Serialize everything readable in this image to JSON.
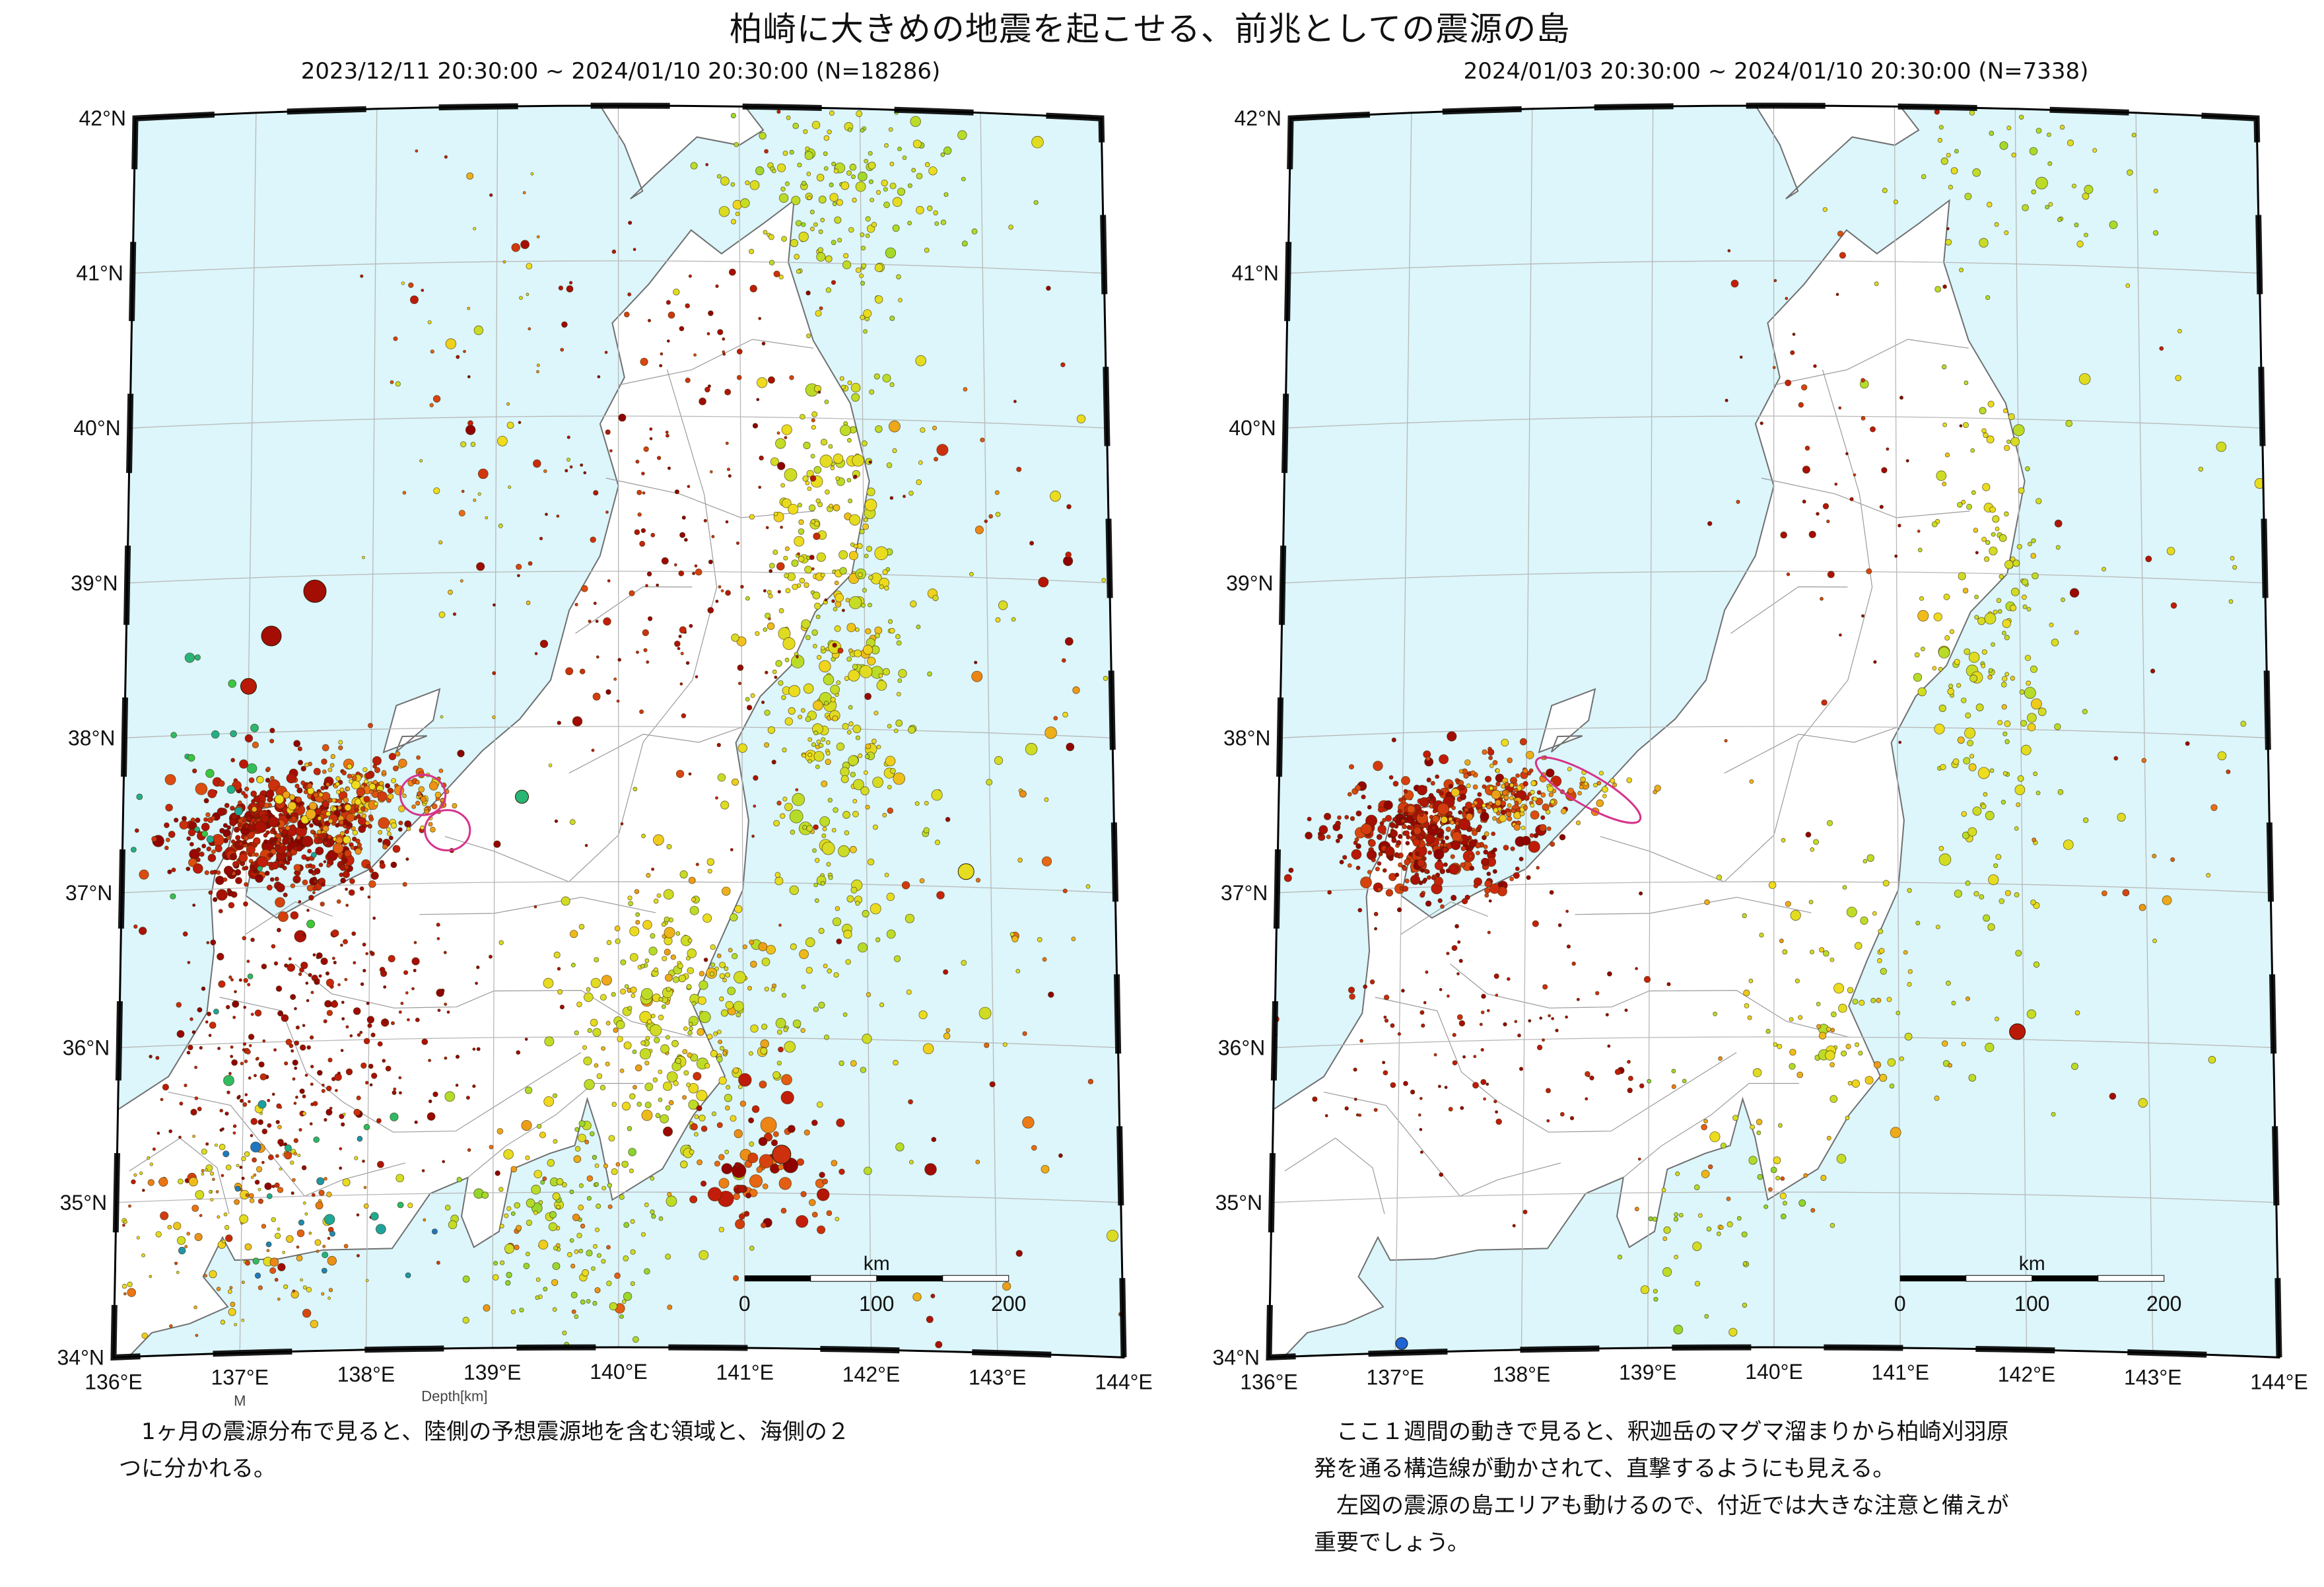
{
  "page": {
    "title": "柏崎に大きめの地震を起こせる、前兆としての震源の島"
  },
  "colors": {
    "sea": "#dcf6fb",
    "land": "#ffffff",
    "coast": "#707070",
    "grid": "#b8b8b8",
    "frame": "#000000",
    "highlight": "#d6338a",
    "depth_shallow": "#8b0000",
    "depth_mid": "#e8e01a",
    "depth_deep": "#1f6fd0"
  },
  "maps": [
    {
      "id": "left",
      "caption": "2023/12/11 20:30:00 ~ 2024/01/10 20:30:00 (N=18286)",
      "lon_ticks": [
        "136°E",
        "137°E",
        "138°E",
        "139°E",
        "140°E",
        "141°E",
        "142°E",
        "143°E",
        "144°E"
      ],
      "lat_ticks": [
        "42°N",
        "41°N",
        "40°N",
        "39°N",
        "38°N",
        "37°N",
        "36°N",
        "35°N",
        "34°N"
      ],
      "scale": {
        "unit": "km",
        "labels": [
          "0",
          "100",
          "200"
        ]
      },
      "partial_labels": [
        "M",
        "Depth[km]"
      ],
      "highlight_ellipses": [
        {
          "lon": 138.42,
          "lat": 37.57,
          "rx_deg": 0.17,
          "ry_deg": 0.13
        },
        {
          "lon": 138.62,
          "lat": 37.34,
          "rx_deg": 0.17,
          "ry_deg": 0.13
        }
      ],
      "clusters": [
        {
          "name": "noto-peninsula-swarm",
          "lon": 137.25,
          "lat": 37.35,
          "sx": 0.42,
          "sy": 0.22,
          "n": 520,
          "depth": [
            0,
            20
          ],
          "size": [
            3,
            9
          ]
        },
        {
          "name": "noto-east-extension",
          "lon": 137.85,
          "lat": 37.55,
          "sx": 0.25,
          "sy": 0.14,
          "n": 160,
          "depth": [
            10,
            45
          ],
          "size": [
            3,
            8
          ]
        },
        {
          "name": "sado-island-group",
          "lon": 138.5,
          "lat": 37.55,
          "sx": 0.1,
          "sy": 0.1,
          "n": 40,
          "depth": [
            20,
            45
          ],
          "size": [
            3,
            7
          ]
        },
        {
          "name": "tohoku-pacific-coast",
          "lon": 141.8,
          "lat": 38.5,
          "sx": 0.32,
          "sy": 1.1,
          "n": 420,
          "depth": [
            35,
            70
          ],
          "size": [
            3,
            10
          ]
        },
        {
          "name": "tohoku-interior",
          "lon": 140.6,
          "lat": 39.3,
          "sx": 0.7,
          "sy": 1.2,
          "n": 220,
          "depth": [
            0,
            20
          ],
          "size": [
            2,
            6
          ]
        },
        {
          "name": "kanto-ibaraki",
          "lon": 140.5,
          "lat": 36.1,
          "sx": 0.5,
          "sy": 0.55,
          "n": 300,
          "depth": [
            30,
            70
          ],
          "size": [
            3,
            9
          ]
        },
        {
          "name": "chubu-hida-shallow",
          "lon": 137.5,
          "lat": 36.0,
          "sx": 0.7,
          "sy": 0.5,
          "n": 320,
          "depth": [
            0,
            15
          ],
          "size": [
            2,
            6
          ]
        },
        {
          "name": "izu-south",
          "lon": 139.5,
          "lat": 34.8,
          "sx": 0.4,
          "sy": 0.4,
          "n": 160,
          "depth": [
            20,
            90
          ],
          "size": [
            3,
            8
          ]
        },
        {
          "name": "tokai-west",
          "lon": 137.0,
          "lat": 34.9,
          "sx": 0.6,
          "sy": 0.35,
          "n": 170,
          "depth": [
            15,
            55
          ],
          "size": [
            2,
            7
          ]
        },
        {
          "name": "hokkaido-south",
          "lon": 141.8,
          "lat": 41.5,
          "sx": 0.5,
          "sy": 0.35,
          "n": 160,
          "depth": [
            40,
            80
          ],
          "size": [
            3,
            8
          ]
        },
        {
          "name": "offshore-boso",
          "lon": 141.2,
          "lat": 35.2,
          "sx": 0.3,
          "sy": 0.3,
          "n": 80,
          "depth": [
            0,
            30
          ],
          "size": [
            4,
            12
          ]
        },
        {
          "name": "japan-sea-north",
          "lon": 138.8,
          "lat": 40.0,
          "sx": 0.45,
          "sy": 0.9,
          "n": 70,
          "depth": [
            0,
            60
          ],
          "size": [
            2,
            8
          ]
        },
        {
          "name": "offshore-east",
          "lon": 143.2,
          "lat": 37.5,
          "sx": 0.55,
          "sy": 2.0,
          "n": 110,
          "depth": [
            0,
            60
          ],
          "size": [
            3,
            9
          ]
        },
        {
          "name": "deep-japan-sea-west",
          "lon": 136.8,
          "lat": 37.5,
          "sx": 0.3,
          "sy": 0.7,
          "n": 25,
          "depth": [
            120,
            220
          ],
          "size": [
            4,
            8
          ]
        },
        {
          "name": "deep-chubu",
          "lon": 137.6,
          "lat": 35.0,
          "sx": 0.5,
          "sy": 0.5,
          "n": 25,
          "depth": [
            150,
            280
          ],
          "size": [
            4,
            8
          ]
        }
      ],
      "big_events": [
        {
          "lon": 137.53,
          "lat": 38.9,
          "depth": 5,
          "size": 17
        },
        {
          "lon": 137.18,
          "lat": 38.62,
          "depth": 5,
          "size": 15
        },
        {
          "lon": 137.0,
          "lat": 38.3,
          "depth": 10,
          "size": 12
        },
        {
          "lon": 139.22,
          "lat": 37.55,
          "depth": 170,
          "size": 10
        },
        {
          "lon": 141.3,
          "lat": 35.25,
          "depth": 15,
          "size": 14
        },
        {
          "lon": 142.8,
          "lat": 37.1,
          "depth": 45,
          "size": 12
        }
      ]
    },
    {
      "id": "right",
      "caption": "2024/01/03 20:30:00 ~ 2024/01/10 20:30:00 (N=7338)",
      "lon_ticks": [
        "136°E",
        "137°E",
        "138°E",
        "139°E",
        "140°E",
        "141°E",
        "142°E",
        "143°E",
        "144°E"
      ],
      "lat_ticks": [
        "42°N",
        "41°N",
        "40°N",
        "39°N",
        "38°N",
        "37°N",
        "36°N",
        "35°N",
        "34°N"
      ],
      "scale": {
        "unit": "km",
        "labels": [
          "0",
          "100",
          "200"
        ]
      },
      "partial_labels": [],
      "highlight_ellipses": [
        {
          "lon": 138.5,
          "lat": 37.6,
          "rx_deg": 0.45,
          "ry_deg": 0.1,
          "rotate": 30
        }
      ],
      "clusters": [
        {
          "name": "noto-peninsula-swarm",
          "lon": 137.25,
          "lat": 37.35,
          "sx": 0.4,
          "sy": 0.2,
          "n": 430,
          "depth": [
            0,
            20
          ],
          "size": [
            3,
            9
          ]
        },
        {
          "name": "noto-east-extension",
          "lon": 137.85,
          "lat": 37.6,
          "sx": 0.22,
          "sy": 0.13,
          "n": 110,
          "depth": [
            10,
            45
          ],
          "size": [
            3,
            7
          ]
        },
        {
          "name": "kashiwazaki-lineation",
          "lon": 138.5,
          "lat": 37.6,
          "sx": 0.3,
          "sy": 0.08,
          "n": 25,
          "depth": [
            25,
            45
          ],
          "size": [
            3,
            6
          ]
        },
        {
          "name": "tohoku-pacific-coast",
          "lon": 141.8,
          "lat": 38.3,
          "sx": 0.3,
          "sy": 1.0,
          "n": 200,
          "depth": [
            35,
            70
          ],
          "size": [
            3,
            9
          ]
        },
        {
          "name": "tohoku-interior",
          "lon": 140.6,
          "lat": 39.4,
          "sx": 0.6,
          "sy": 1.0,
          "n": 60,
          "depth": [
            0,
            20
          ],
          "size": [
            2,
            6
          ]
        },
        {
          "name": "kanto-ibaraki",
          "lon": 140.6,
          "lat": 36.2,
          "sx": 0.5,
          "sy": 0.5,
          "n": 110,
          "depth": [
            30,
            70
          ],
          "size": [
            3,
            8
          ]
        },
        {
          "name": "chubu-hida-shallow",
          "lon": 137.6,
          "lat": 36.0,
          "sx": 0.7,
          "sy": 0.5,
          "n": 120,
          "depth": [
            0,
            15
          ],
          "size": [
            2,
            5
          ]
        },
        {
          "name": "izu-south",
          "lon": 139.5,
          "lat": 34.9,
          "sx": 0.4,
          "sy": 0.4,
          "n": 60,
          "depth": [
            20,
            90
          ],
          "size": [
            3,
            7
          ]
        },
        {
          "name": "hokkaido-south",
          "lon": 142.0,
          "lat": 41.5,
          "sx": 0.6,
          "sy": 0.4,
          "n": 60,
          "depth": [
            40,
            80
          ],
          "size": [
            3,
            7
          ]
        },
        {
          "name": "offshore-east",
          "lon": 143.2,
          "lat": 38.0,
          "sx": 0.5,
          "sy": 1.6,
          "n": 40,
          "depth": [
            0,
            60
          ],
          "size": [
            3,
            9
          ]
        }
      ],
      "big_events": [
        {
          "lon": 141.95,
          "lat": 36.05,
          "depth": 10,
          "size": 12
        },
        {
          "lon": 137.05,
          "lat": 34.06,
          "depth": 300,
          "size": 9
        }
      ]
    }
  ],
  "notes": {
    "left": [
      "　1ヶ月の震源分布で見ると、陸側の予想震源地を含む領域と、海側の２",
      "つに分かれる。"
    ],
    "right": [
      "　ここ１週間の動きで見ると、釈迦岳のマグマ溜まりから柏崎刈羽原",
      "発を通る構造線が動かされて、直撃するようにも見える。",
      "　左図の震源の島エリアも動けるので、付近では大きな注意と備えが",
      "重要でしょう。"
    ]
  }
}
